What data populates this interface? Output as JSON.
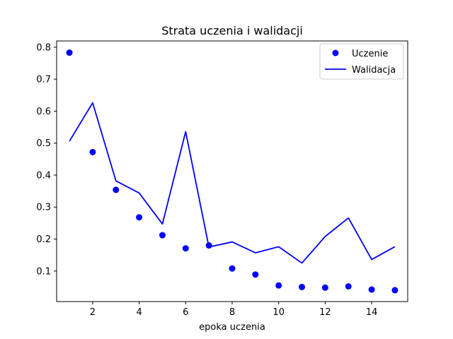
{
  "chart_data": {
    "type": "line",
    "title": "Strata uczenia i walidacji",
    "xlabel": "epoka uczenia",
    "ylabel": "",
    "xlim": [
      0.45,
      15.55
    ],
    "ylim": [
      0.0045,
      0.8195
    ],
    "xticks": [
      2,
      4,
      6,
      8,
      10,
      12,
      14
    ],
    "yticks": [
      0.1,
      0.2,
      0.3,
      0.4,
      0.5,
      0.6,
      0.7,
      0.8
    ],
    "x": [
      1,
      2,
      3,
      4,
      5,
      6,
      7,
      8,
      9,
      10,
      11,
      12,
      13,
      14,
      15
    ],
    "series": [
      {
        "name": "Uczenie",
        "style": "scatter",
        "color": "#0000ff",
        "values": [
          0.783,
          0.472,
          0.354,
          0.268,
          0.212,
          0.171,
          0.18,
          0.108,
          0.089,
          0.055,
          0.05,
          0.048,
          0.052,
          0.042,
          0.04
        ]
      },
      {
        "name": "Walidacja",
        "style": "line",
        "color": "#0000ff",
        "values": [
          0.506,
          0.626,
          0.382,
          0.344,
          0.247,
          0.536,
          0.175,
          0.191,
          0.157,
          0.176,
          0.125,
          0.208,
          0.266,
          0.136,
          0.176
        ]
      }
    ],
    "grid": false,
    "legend": "top-right"
  }
}
